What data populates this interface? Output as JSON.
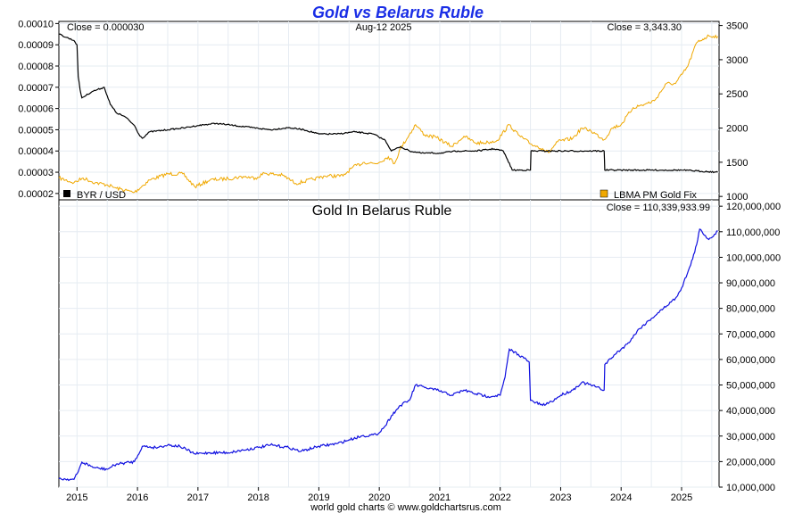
{
  "header": {
    "title": "Gold vs Belarus Ruble",
    "date": "Aug-12  2025",
    "footer": "world gold charts © www.goldchartsrus.com"
  },
  "colors": {
    "byr": "#000000",
    "gold": "#f0a800",
    "gold_byr": "#1010e0",
    "grid": "#e6ecf2",
    "title": "#1a2ee6"
  },
  "chart_data": [
    {
      "type": "line",
      "panel": "top",
      "close_left": "Close = 0.000030",
      "close_right": "Close = 3,343.30",
      "date_label": "Aug-12  2025",
      "left_axis": {
        "ylim": [
          1.7e-05,
          0.000101
        ],
        "ticks": [
          2e-05,
          3e-05,
          4e-05,
          5e-05,
          6e-05,
          7e-05,
          8e-05,
          9e-05,
          0.0001
        ],
        "tick_labels": [
          "0.00002",
          "0.00003",
          "0.00004",
          "0.00005",
          "0.00006",
          "0.00007",
          "0.00008",
          "0.00009",
          "0.00010"
        ]
      },
      "right_axis": {
        "ylim": [
          950,
          3560
        ],
        "ticks": [
          1000,
          1500,
          2000,
          2500,
          3000,
          3500
        ],
        "tick_labels": [
          "1000",
          "1500",
          "2000",
          "2500",
          "3000",
          "3500"
        ]
      },
      "xlim": [
        2014.7,
        2025.62
      ],
      "series": [
        {
          "name": "BYR / USD",
          "axis": "left",
          "color": "#000000",
          "points": [
            [
              2014.7,
              9.5e-05
            ],
            [
              2014.95,
              9.2e-05
            ],
            [
              2015.0,
              9e-05
            ],
            [
              2015.02,
              7.5e-05
            ],
            [
              2015.05,
              6.9e-05
            ],
            [
              2015.08,
              6.5e-05
            ],
            [
              2015.25,
              6.8e-05
            ],
            [
              2015.45,
              7e-05
            ],
            [
              2015.55,
              6.2e-05
            ],
            [
              2015.65,
              5.8e-05
            ],
            [
              2015.8,
              5.6e-05
            ],
            [
              2015.95,
              5.2e-05
            ],
            [
              2016.02,
              4.8e-05
            ],
            [
              2016.08,
              4.6e-05
            ],
            [
              2016.2,
              4.9e-05
            ],
            [
              2016.5,
              5e-05
            ],
            [
              2016.8,
              5.1e-05
            ],
            [
              2017.0,
              5.2e-05
            ],
            [
              2017.3,
              5.3e-05
            ],
            [
              2017.6,
              5.2e-05
            ],
            [
              2017.9,
              5.1e-05
            ],
            [
              2018.2,
              5e-05
            ],
            [
              2018.5,
              5.1e-05
            ],
            [
              2018.75,
              5e-05
            ],
            [
              2019.0,
              4.8e-05
            ],
            [
              2019.3,
              4.8e-05
            ],
            [
              2019.6,
              4.9e-05
            ],
            [
              2019.9,
              4.8e-05
            ],
            [
              2020.1,
              4.5e-05
            ],
            [
              2020.2,
              4e-05
            ],
            [
              2020.35,
              4.2e-05
            ],
            [
              2020.5,
              4e-05
            ],
            [
              2020.7,
              3.9e-05
            ],
            [
              2021.0,
              3.9e-05
            ],
            [
              2021.3,
              4e-05
            ],
            [
              2021.6,
              4e-05
            ],
            [
              2021.9,
              4.1e-05
            ],
            [
              2022.05,
              4e-05
            ],
            [
              2022.12,
              3.6e-05
            ],
            [
              2022.2,
              3.1e-05
            ],
            [
              2022.5,
              3.1e-05
            ],
            [
              2022.51,
              4e-05
            ],
            [
              2022.7,
              4e-05
            ],
            [
              2023.0,
              4e-05
            ],
            [
              2023.4,
              4e-05
            ],
            [
              2023.72,
              4e-05
            ],
            [
              2023.73,
              3.1e-05
            ],
            [
              2024.0,
              3.1e-05
            ],
            [
              2024.5,
              3.1e-05
            ],
            [
              2025.0,
              3.1e-05
            ],
            [
              2025.6,
              3e-05
            ]
          ]
        },
        {
          "name": "LBMA PM Gold Fix",
          "axis": "right",
          "color": "#f0a800",
          "points": [
            [
              2014.7,
              1270
            ],
            [
              2014.95,
              1200
            ],
            [
              2015.1,
              1270
            ],
            [
              2015.3,
              1200
            ],
            [
              2015.5,
              1170
            ],
            [
              2015.65,
              1120
            ],
            [
              2015.95,
              1060
            ],
            [
              2016.2,
              1240
            ],
            [
              2016.5,
              1330
            ],
            [
              2016.75,
              1330
            ],
            [
              2016.95,
              1140
            ],
            [
              2017.2,
              1240
            ],
            [
              2017.5,
              1260
            ],
            [
              2017.75,
              1290
            ],
            [
              2017.95,
              1270
            ],
            [
              2018.1,
              1340
            ],
            [
              2018.4,
              1310
            ],
            [
              2018.62,
              1190
            ],
            [
              2018.9,
              1250
            ],
            [
              2019.1,
              1300
            ],
            [
              2019.4,
              1300
            ],
            [
              2019.55,
              1420
            ],
            [
              2019.75,
              1500
            ],
            [
              2019.95,
              1480
            ],
            [
              2020.15,
              1580
            ],
            [
              2020.25,
              1480
            ],
            [
              2020.35,
              1700
            ],
            [
              2020.6,
              2050
            ],
            [
              2020.75,
              1900
            ],
            [
              2020.95,
              1860
            ],
            [
              2021.2,
              1730
            ],
            [
              2021.4,
              1880
            ],
            [
              2021.6,
              1780
            ],
            [
              2021.8,
              1790
            ],
            [
              2021.95,
              1820
            ],
            [
              2022.15,
              2050
            ],
            [
              2022.3,
              1900
            ],
            [
              2022.5,
              1770
            ],
            [
              2022.7,
              1700
            ],
            [
              2022.8,
              1640
            ],
            [
              2022.95,
              1800
            ],
            [
              2023.2,
              1850
            ],
            [
              2023.35,
              2000
            ],
            [
              2023.5,
              1960
            ],
            [
              2023.72,
              1830
            ],
            [
              2023.85,
              2000
            ],
            [
              2024.0,
              2050
            ],
            [
              2024.2,
              2300
            ],
            [
              2024.4,
              2350
            ],
            [
              2024.55,
              2400
            ],
            [
              2024.75,
              2650
            ],
            [
              2024.9,
              2650
            ],
            [
              2025.1,
              2900
            ],
            [
              2025.25,
              3250
            ],
            [
              2025.35,
              3300
            ],
            [
              2025.45,
              3350
            ],
            [
              2025.6,
              3343
            ]
          ]
        }
      ],
      "legend": [
        "BYR / USD",
        "LBMA PM Gold Fix"
      ]
    },
    {
      "type": "line",
      "panel": "bottom",
      "title": "Gold In Belarus Ruble",
      "close_right": "Close = 110,339,933.99",
      "ylim": [
        10000000,
        122500000
      ],
      "ticks": [
        10000000,
        20000000,
        30000000,
        40000000,
        50000000,
        60000000,
        70000000,
        80000000,
        90000000,
        100000000,
        110000000,
        120000000
      ],
      "tick_labels": [
        "10,000,000",
        "20,000,000",
        "30,000,000",
        "40,000,000",
        "50,000,000",
        "60,000,000",
        "70,000,000",
        "80,000,000",
        "90,000,000",
        "100,000,000",
        "110,000,000",
        "120,000,000"
      ],
      "xlim": [
        2014.7,
        2025.62
      ],
      "x_ticks": [
        2015,
        2016,
        2017,
        2018,
        2019,
        2020,
        2021,
        2022,
        2023,
        2024,
        2025
      ],
      "x_tick_labels": [
        "2015",
        "2016",
        "2017",
        "2018",
        "2019",
        "2020",
        "2021",
        "2022",
        "2023",
        "2024",
        "2025"
      ],
      "series": [
        {
          "name": "",
          "color": "#1010e0",
          "points": [
            [
              2014.7,
              13300000
            ],
            [
              2014.95,
              13000000
            ],
            [
              2015.02,
              16000000
            ],
            [
              2015.08,
              19800000
            ],
            [
              2015.3,
              17500000
            ],
            [
              2015.5,
              17000000
            ],
            [
              2015.65,
              19000000
            ],
            [
              2015.95,
              20000000
            ],
            [
              2016.08,
              26000000
            ],
            [
              2016.3,
              25500000
            ],
            [
              2016.5,
              26500000
            ],
            [
              2016.7,
              26000000
            ],
            [
              2016.95,
              23000000
            ],
            [
              2017.2,
              23500000
            ],
            [
              2017.5,
              23500000
            ],
            [
              2017.75,
              24500000
            ],
            [
              2018.0,
              25500000
            ],
            [
              2018.2,
              26500000
            ],
            [
              2018.5,
              25500000
            ],
            [
              2018.7,
              24000000
            ],
            [
              2019.0,
              26000000
            ],
            [
              2019.3,
              27000000
            ],
            [
              2019.5,
              28500000
            ],
            [
              2019.7,
              30000000
            ],
            [
              2019.95,
              30500000
            ],
            [
              2020.1,
              34000000
            ],
            [
              2020.2,
              38000000
            ],
            [
              2020.35,
              42000000
            ],
            [
              2020.5,
              44000000
            ],
            [
              2020.6,
              50000000
            ],
            [
              2020.75,
              49000000
            ],
            [
              2020.95,
              48000000
            ],
            [
              2021.2,
              46000000
            ],
            [
              2021.4,
              48000000
            ],
            [
              2021.6,
              46500000
            ],
            [
              2021.8,
              45500000
            ],
            [
              2022.0,
              46000000
            ],
            [
              2022.08,
              53000000
            ],
            [
              2022.15,
              64000000
            ],
            [
              2022.3,
              62000000
            ],
            [
              2022.48,
              59000000
            ],
            [
              2022.5,
              44000000
            ],
            [
              2022.7,
              42000000
            ],
            [
              2022.85,
              43500000
            ],
            [
              2023.0,
              46000000
            ],
            [
              2023.2,
              48000000
            ],
            [
              2023.35,
              51000000
            ],
            [
              2023.5,
              50000000
            ],
            [
              2023.72,
              48000000
            ],
            [
              2023.73,
              58000000
            ],
            [
              2023.9,
              62000000
            ],
            [
              2024.1,
              66000000
            ],
            [
              2024.3,
              72000000
            ],
            [
              2024.5,
              76000000
            ],
            [
              2024.7,
              80000000
            ],
            [
              2024.9,
              84000000
            ],
            [
              2025.0,
              88000000
            ],
            [
              2025.15,
              97000000
            ],
            [
              2025.25,
              105000000
            ],
            [
              2025.3,
              111000000
            ],
            [
              2025.45,
              107000000
            ],
            [
              2025.6,
              110300000
            ]
          ]
        }
      ]
    }
  ]
}
